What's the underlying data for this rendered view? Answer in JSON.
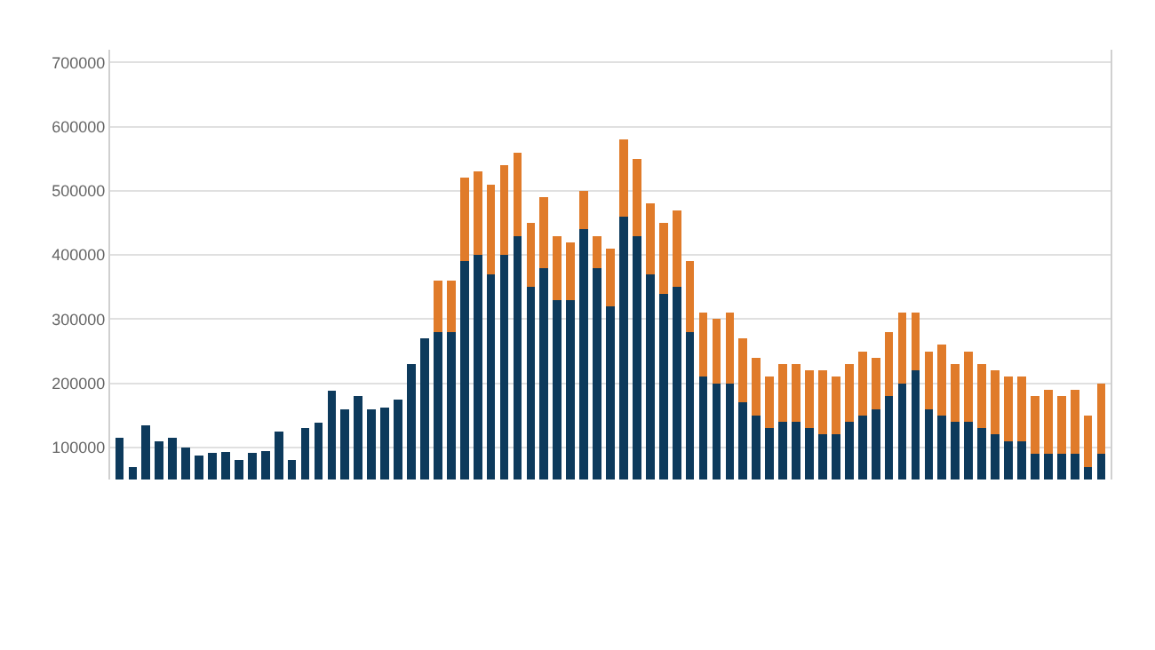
{
  "chart_data": {
    "type": "bar",
    "stacked": true,
    "grid": "y",
    "tick_labels": "y",
    "categories": [
      null,
      null,
      null,
      null,
      null,
      null,
      null,
      null,
      null,
      null,
      null,
      null,
      null,
      null,
      null,
      null,
      null,
      null,
      null,
      null,
      null,
      null,
      null,
      null,
      null,
      null,
      null,
      null,
      null,
      null,
      null,
      null,
      null,
      null,
      null,
      null,
      null,
      null,
      null,
      null,
      null,
      null,
      null,
      null,
      null,
      null,
      null,
      null,
      null,
      null,
      null,
      null,
      null,
      null,
      null,
      null,
      null,
      null,
      null,
      null,
      null,
      null,
      null,
      null,
      null,
      null,
      null,
      null,
      null,
      null,
      null,
      null,
      null,
      null,
      null
    ],
    "series": [
      {
        "color": "#0d3a5c",
        "values": [
          115000,
          70000,
          135000,
          110000,
          115000,
          100000,
          88000,
          92000,
          93000,
          80000,
          92000,
          95000,
          125000,
          80000,
          130000,
          138000,
          188000,
          160000,
          180000,
          160000,
          162000,
          175000,
          230000,
          270000,
          280000,
          280000,
          390000,
          400000,
          370000,
          400000,
          430000,
          350000,
          380000,
          330000,
          330000,
          440000,
          380000,
          320000,
          460000,
          430000,
          370000,
          340000,
          350000,
          280000,
          210000,
          200000,
          200000,
          170000,
          150000,
          130000,
          140000,
          140000,
          130000,
          120000,
          120000,
          140000,
          150000,
          160000,
          180000,
          200000,
          220000,
          160000,
          150000,
          140000,
          140000,
          130000,
          120000,
          110000,
          110000,
          90000,
          90000,
          90000,
          90000,
          70000,
          90000
        ]
      },
      {
        "color": "#e07b2a",
        "values": [
          null,
          null,
          null,
          null,
          null,
          null,
          null,
          null,
          null,
          null,
          null,
          null,
          null,
          null,
          null,
          null,
          null,
          null,
          null,
          null,
          null,
          null,
          null,
          null,
          80000,
          80000,
          130000,
          130000,
          140000,
          140000,
          130000,
          100000,
          110000,
          100000,
          90000,
          60000,
          50000,
          90000,
          120000,
          120000,
          110000,
          110000,
          120000,
          110000,
          100000,
          100000,
          110000,
          100000,
          90000,
          80000,
          90000,
          90000,
          90000,
          100000,
          90000,
          90000,
          100000,
          80000,
          100000,
          110000,
          90000,
          90000,
          110000,
          90000,
          110000,
          100000,
          100000,
          100000,
          100000,
          90000,
          100000,
          90000,
          100000,
          80000,
          110000
        ]
      }
    ],
    "ylim": [
      50000,
      720000
    ],
    "yticks": [
      100000,
      200000,
      300000,
      400000,
      500000,
      600000,
      700000
    ]
  }
}
